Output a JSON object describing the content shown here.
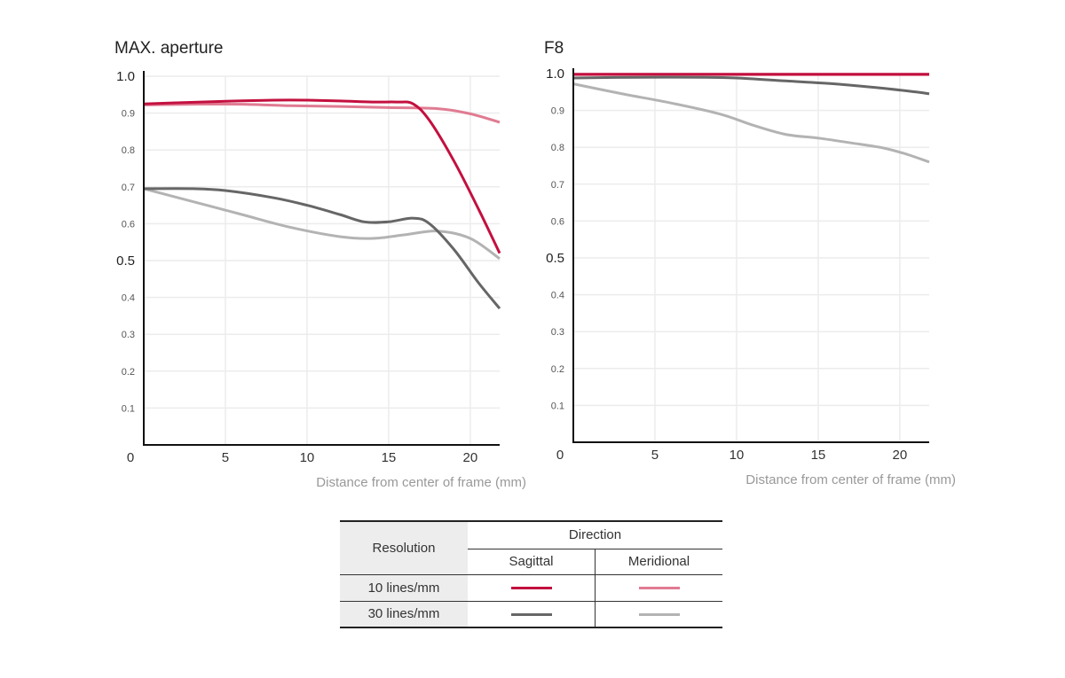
{
  "chart_data": [
    {
      "type": "line",
      "title": "MAX. aperture",
      "xlabel": "Distance from center of frame (mm)",
      "ylabel": "",
      "xlim": [
        0,
        21.8
      ],
      "ylim": [
        0,
        1.0
      ],
      "x_ticks": [
        "0",
        "5",
        "10",
        "15",
        "20"
      ],
      "y_ticks": [
        "0.1",
        "0.2",
        "0.3",
        "0.4",
        "0.5",
        "0.6",
        "0.7",
        "0.8",
        "0.9",
        "1.0"
      ],
      "grid": true,
      "series": [
        {
          "name": "10 lines/mm Sagittal",
          "color": "#c3103f",
          "x": [
            0,
            2,
            5,
            8,
            10,
            12,
            14,
            15.5,
            16.5,
            17.5,
            19,
            20.5,
            21.8
          ],
          "y": [
            0.925,
            0.928,
            0.932,
            0.935,
            0.935,
            0.933,
            0.93,
            0.93,
            0.925,
            0.88,
            0.77,
            0.64,
            0.52
          ]
        },
        {
          "name": "10 lines/mm Meridional",
          "color": "#e07b92",
          "x": [
            0,
            3,
            6,
            9,
            12,
            15,
            18,
            20,
            21.8
          ],
          "y": [
            0.922,
            0.924,
            0.924,
            0.92,
            0.918,
            0.915,
            0.912,
            0.898,
            0.875
          ]
        },
        {
          "name": "30 lines/mm Sagittal",
          "color": "#666666",
          "x": [
            0,
            3,
            5,
            8,
            10,
            12,
            13.5,
            15,
            16.5,
            17.5,
            19,
            20.5,
            21.8
          ],
          "y": [
            0.695,
            0.695,
            0.69,
            0.67,
            0.65,
            0.625,
            0.605,
            0.605,
            0.615,
            0.6,
            0.53,
            0.44,
            0.37
          ]
        },
        {
          "name": "30 lines/mm Meridional",
          "color": "#b3b3b3",
          "x": [
            0,
            3,
            6,
            9,
            12,
            14,
            16,
            18,
            20,
            21.8
          ],
          "y": [
            0.695,
            0.66,
            0.625,
            0.59,
            0.565,
            0.56,
            0.57,
            0.58,
            0.56,
            0.505
          ]
        }
      ]
    },
    {
      "type": "line",
      "title": "F8",
      "xlabel": "Distance from center of frame (mm)",
      "ylabel": "",
      "xlim": [
        0,
        21.8
      ],
      "ylim": [
        0,
        1.0
      ],
      "x_ticks": [
        "0",
        "5",
        "10",
        "15",
        "20"
      ],
      "y_ticks": [
        "0.1",
        "0.2",
        "0.3",
        "0.4",
        "0.5",
        "0.6",
        "0.7",
        "0.8",
        "0.9",
        "1.0"
      ],
      "grid": true,
      "series": [
        {
          "name": "10 lines/mm Sagittal",
          "color": "#c3103f",
          "x": [
            0,
            21.8
          ],
          "y": [
            0.998,
            0.998
          ]
        },
        {
          "name": "10 lines/mm Meridional",
          "color": "#e07b92",
          "x": [
            0,
            21.8
          ],
          "y": [
            0.997,
            0.997
          ]
        },
        {
          "name": "30 lines/mm Sagittal",
          "color": "#666666",
          "x": [
            0,
            4,
            8,
            10,
            13,
            16,
            19,
            21,
            21.8
          ],
          "y": [
            0.988,
            0.99,
            0.99,
            0.988,
            0.98,
            0.972,
            0.96,
            0.95,
            0.945
          ]
        },
        {
          "name": "30 lines/mm Meridional",
          "color": "#b3b3b3",
          "x": [
            0,
            3,
            6,
            9,
            11,
            13,
            15,
            17,
            19,
            20.5,
            21.8
          ],
          "y": [
            0.972,
            0.945,
            0.92,
            0.89,
            0.86,
            0.835,
            0.825,
            0.812,
            0.798,
            0.78,
            0.76
          ]
        }
      ]
    }
  ],
  "legend": {
    "resolution_label": "Resolution",
    "direction_label": "Direction",
    "sagittal_label": "Sagittal",
    "meridional_label": "Meridional",
    "rows": [
      {
        "label": "10 lines/mm",
        "sagittal_color": "#c3103f",
        "meridional_color": "#e07b92"
      },
      {
        "label": "30 lines/mm",
        "sagittal_color": "#666666",
        "meridional_color": "#b3b3b3"
      }
    ]
  }
}
